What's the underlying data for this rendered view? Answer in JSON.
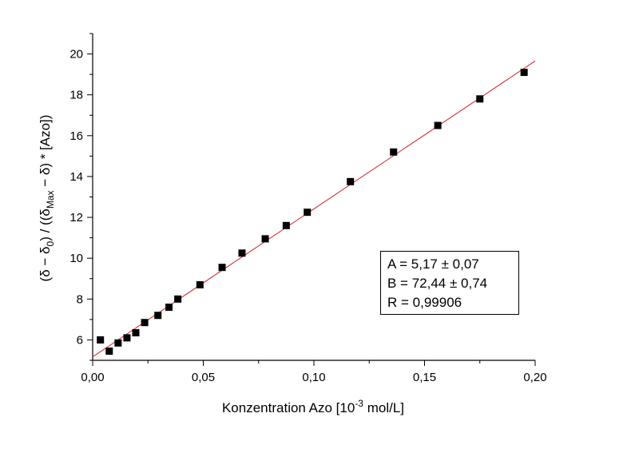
{
  "chart_data": {
    "type": "scatter",
    "xlabel_prefix": "Konzentration Azo [10",
    "xlabel_exp": "-3",
    "xlabel_suffix": " mol/L]",
    "ylabel_parts": [
      "(δ − δ",
      "0",
      ") / ((δ",
      "Max",
      " − δ) * [Azo])"
    ],
    "xlim": [
      0,
      0.2
    ],
    "ylim": [
      5,
      21
    ],
    "x_ticks": [
      0.0,
      0.05,
      0.1,
      0.15,
      0.2
    ],
    "x_tick_labels": [
      "0,00",
      "0,05",
      "0,10",
      "0,15",
      "0,20"
    ],
    "y_ticks": [
      6,
      8,
      10,
      12,
      14,
      16,
      18,
      20
    ],
    "y_tick_labels": [
      "6",
      "8",
      "10",
      "12",
      "14",
      "16",
      "18",
      "20"
    ],
    "grid": false,
    "series": [
      {
        "marker": "square",
        "color": "#000000",
        "x": [
          0.0035,
          0.0075,
          0.0115,
          0.0155,
          0.0195,
          0.0235,
          0.0295,
          0.0345,
          0.0385,
          0.0485,
          0.0585,
          0.0675,
          0.078,
          0.0875,
          0.097,
          0.1165,
          0.136,
          0.156,
          0.175,
          0.195
        ],
        "y": [
          6.0,
          5.45,
          5.85,
          6.1,
          6.35,
          6.85,
          7.2,
          7.6,
          8.0,
          8.7,
          9.55,
          10.25,
          10.95,
          11.6,
          12.25,
          13.75,
          15.2,
          16.5,
          17.8,
          19.1
        ]
      }
    ],
    "fit_line": {
      "color": "#d02020",
      "intercept": 5.17,
      "slope": 72.44,
      "x_range": [
        0.0,
        0.2
      ]
    },
    "annotations": [
      "A = 5,17 ± 0,07",
      "B = 72,44 ± 0,74",
      "R = 0,99906"
    ]
  }
}
